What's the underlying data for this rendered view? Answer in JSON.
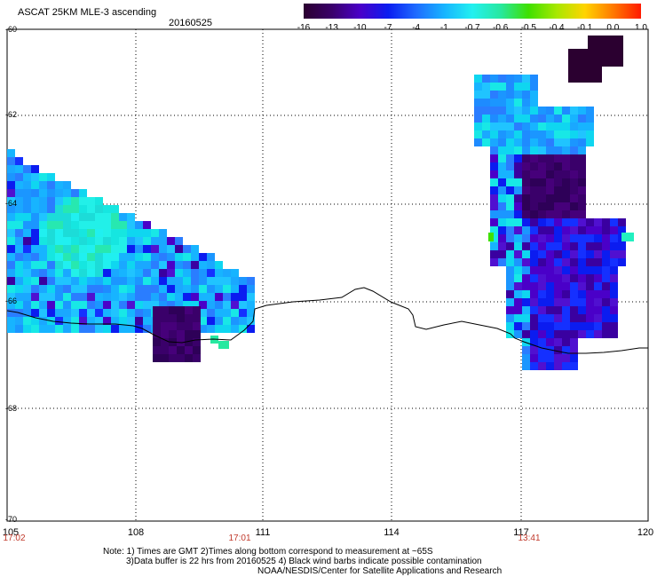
{
  "header": {
    "title": "ASCAT 25KM MLE-3 ascending",
    "date": "20160525"
  },
  "colorbar": {
    "labels": [
      "-16",
      "-13",
      "-10",
      "-7",
      "-4",
      "-1",
      "-0.7",
      "-0.6",
      "-0.5",
      "-0.4",
      "-0.1",
      "0.0",
      "1.0"
    ],
    "colors": [
      "#2b0030",
      "#3a006a",
      "#4a00c8",
      "#0b1cf0",
      "#1e6bff",
      "#17b4ff",
      "#22f0f0",
      "#27e8a0",
      "#3fe000",
      "#a8e800",
      "#ffd400",
      "#ff7a00",
      "#ff1a00"
    ]
  },
  "axes": {
    "y_labels": [
      "-60",
      "-62",
      "-64",
      "-66",
      "-68",
      "-70"
    ],
    "x_labels": [
      "105",
      "108",
      "111",
      "114",
      "117",
      "120"
    ],
    "time_labels": [
      "17:02",
      "17:01",
      "13:41"
    ]
  },
  "notes": {
    "line1": "Note: 1) Times are GMT 2)Times along bottom correspond to measurement at ~65S",
    "line2": "3)Data buffer is 22 hrs from 20160525 4) Black wind barbs indicate possible contamination",
    "line3": "NOAA/NESDIS/Center for Satellite Applications and Research"
  },
  "map_data": {
    "lon_range": [
      105,
      120
    ],
    "lat_range": [
      -70,
      -60
    ],
    "grid_lines": true,
    "coastline_color": "#000000"
  }
}
